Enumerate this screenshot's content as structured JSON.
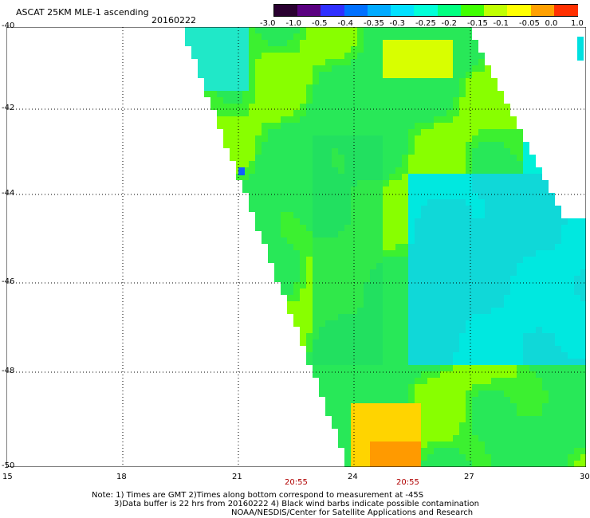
{
  "title_left": "ASCAT 25KM MLE-1 ascending",
  "date_label": "20160222",
  "colorbar": {
    "labels": [
      "-3.0",
      "-1.0",
      "-0.5",
      "-0.4",
      "-0.35",
      "-0.3",
      "-0.25",
      "-0.2",
      "-0.15",
      "-0.1",
      "-0.05",
      "0.0",
      "1.0"
    ],
    "colors": [
      "#2a0030",
      "#5a0080",
      "#2f2fff",
      "#0070ff",
      "#00aaff",
      "#00e0ff",
      "#00ffd8",
      "#00ff80",
      "#40ff00",
      "#c0ff00",
      "#ffff00",
      "#ffa000",
      "#ff3000"
    ]
  },
  "y_axis": {
    "ticks": [
      "-40",
      "-42",
      "-44",
      "-46",
      "-48",
      "-50"
    ]
  },
  "x_axis": {
    "ticks": [
      "15",
      "18",
      "21",
      "24",
      "27",
      "30"
    ]
  },
  "time_labels": [
    "20:55",
    "20:55"
  ],
  "notes": [
    "Note: 1) Times are GMT 2)Times along bottom correspond to measurement at -45S",
    "3)Data buffer is 22 hrs from 20160222 4) Black wind barbs indicate possible contamination",
    "NOAA/NESDIS/Center for Satellite Applications and Research"
  ]
}
